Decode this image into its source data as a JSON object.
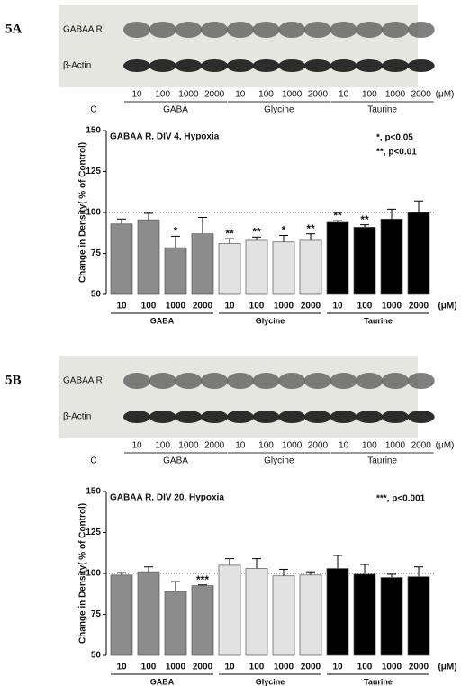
{
  "panels": [
    {
      "label": "5A",
      "blot": {
        "rows": [
          "GABAA R",
          "β-Actin"
        ],
        "control": "C",
        "doses": [
          "10",
          "100",
          "1000",
          "2000",
          "10",
          "100",
          "1000",
          "2000",
          "10",
          "100",
          "1000",
          "2000"
        ],
        "groups": [
          "GABA",
          "Glycine",
          "Taurine"
        ],
        "unit": "(μM)"
      }
    },
    {
      "label": "5B",
      "blot": {
        "rows": [
          "GABAA R",
          "β-Actin"
        ],
        "control": "C",
        "doses": [
          "10",
          "100",
          "1000",
          "2000",
          "10",
          "100",
          "1000",
          "2000",
          "10",
          "100",
          "1000",
          "2000"
        ],
        "groups": [
          "GABA",
          "Glycine",
          "Taurine"
        ],
        "unit": "(μM)"
      }
    }
  ],
  "chart_data": [
    {
      "type": "bar",
      "title": "GABAA R, DIV 4, Hypoxia",
      "ylabel": "Change in Density( % of Control)",
      "xunit": "(μM)",
      "categories": [
        "10",
        "100",
        "1000",
        "2000"
      ],
      "series": [
        {
          "name": "GABA",
          "color": "#8c8c8c",
          "values": [
            93,
            95.5,
            78.5,
            87
          ],
          "errors": [
            3,
            4,
            7,
            10
          ],
          "labels": [
            null,
            null,
            "*",
            null
          ]
        },
        {
          "name": "Glycine",
          "color": "#e2e2e2",
          "values": [
            81,
            83,
            82,
            83
          ],
          "errors": [
            3,
            2,
            4,
            4
          ],
          "labels": [
            "**",
            "**",
            "*",
            "**"
          ]
        },
        {
          "name": "Taurine",
          "color": "#000000",
          "values": [
            94,
            91,
            96,
            100
          ],
          "errors": [
            1,
            1.5,
            6,
            7
          ],
          "labels": [
            "**",
            "**",
            null,
            null
          ]
        }
      ],
      "ylim": [
        50,
        150
      ],
      "yticks": [
        50,
        75,
        100,
        125,
        150
      ],
      "reference_line": 100,
      "annotations": [
        "*, p<0.05",
        "**, p<0.01"
      ]
    },
    {
      "type": "bar",
      "title": "GABAA R, DIV 20, Hypoxia",
      "ylabel": "Change in Density( % of Control)",
      "xunit": "(μM)",
      "categories": [
        "10",
        "100",
        "1000",
        "2000"
      ],
      "series": [
        {
          "name": "GABA",
          "color": "#8c8c8c",
          "values": [
            99,
            101,
            89,
            92.5
          ],
          "errors": [
            1.5,
            3,
            6,
            0.5
          ],
          "labels": [
            null,
            null,
            null,
            "***"
          ]
        },
        {
          "name": "Glycine",
          "color": "#e2e2e2",
          "values": [
            105,
            103,
            98.5,
            99
          ],
          "errors": [
            4,
            6,
            4,
            2
          ],
          "labels": [
            null,
            null,
            null,
            null
          ]
        },
        {
          "name": "Taurine",
          "color": "#000000",
          "values": [
            103,
            99.5,
            97.5,
            98
          ],
          "errors": [
            8,
            6,
            2,
            6
          ],
          "labels": [
            null,
            null,
            null,
            null
          ]
        }
      ],
      "ylim": [
        50,
        150
      ],
      "yticks": [
        50,
        75,
        100,
        125,
        150
      ],
      "reference_line": 100,
      "annotations": [
        "***, p<0.001"
      ]
    }
  ]
}
